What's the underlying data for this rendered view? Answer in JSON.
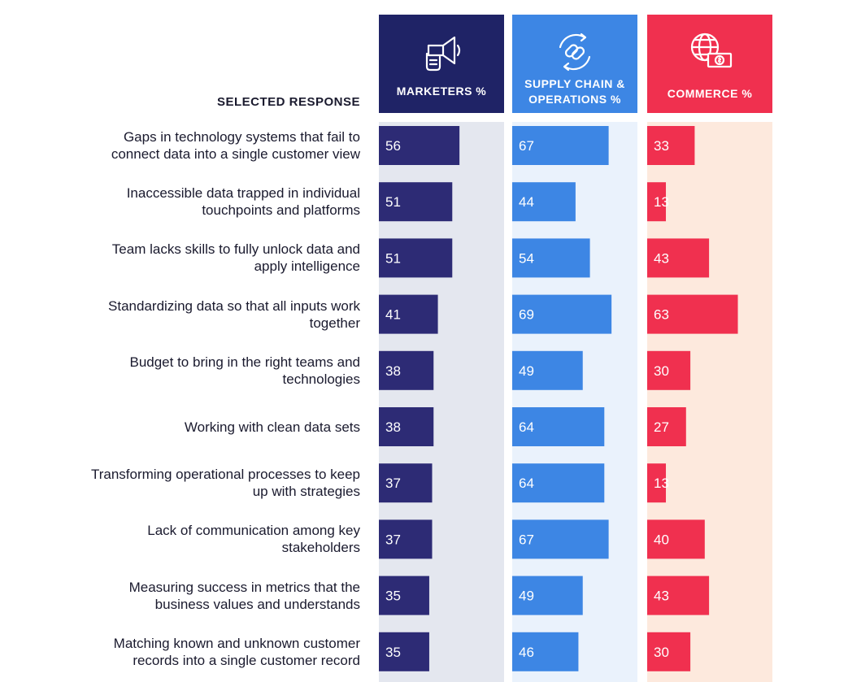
{
  "header": {
    "response_label": "SELECTED RESPONSE"
  },
  "columns": [
    {
      "key": "marketers",
      "label": "MARKETERS %",
      "icon": "megaphone-icon",
      "header_color": "#1f2366",
      "bar_color": "#2d2b75",
      "bg_color": "#e4e7ef"
    },
    {
      "key": "supply_chain",
      "label": "SUPPLY CHAIN & OPERATIONS %",
      "icon": "linked-chain-cycle-icon",
      "header_color": "#3d86e4",
      "bar_color": "#3d86e4",
      "bg_color": "#eaf2fc"
    },
    {
      "key": "commerce",
      "label": "COMMERCE %",
      "icon": "globe-money-icon",
      "header_color": "#f0304f",
      "bar_color": "#f0304f",
      "bg_color": "#fde9dd"
    }
  ],
  "chart_data": {
    "type": "bar",
    "orientation": "horizontal",
    "categories": [
      "Gaps in technology systems that fail to\nconnect data into a single customer view",
      "Inaccessible data trapped in individual\ntouchpoints and platforms",
      "Team lacks skills to fully unlock data and\napply intelligence",
      "Standardizing data so that all inputs work\ntogether",
      "Budget to bring in the right teams and\ntechnologies",
      "Working with clean data sets",
      "Transforming operational processes to keep\nup with strategies",
      "Lack of communication among key\nstakeholders",
      "Measuring success in metrics that the\nbusiness values and understands",
      "Matching known and unknown customer\nrecords into a single customer record"
    ],
    "series": [
      {
        "name": "MARKETERS %",
        "values": [
          56,
          51,
          51,
          41,
          38,
          38,
          37,
          37,
          35,
          35
        ]
      },
      {
        "name": "SUPPLY CHAIN & OPERATIONS %",
        "values": [
          67,
          44,
          54,
          69,
          49,
          64,
          64,
          67,
          49,
          46
        ]
      },
      {
        "name": "COMMERCE %",
        "values": [
          33,
          13,
          43,
          63,
          30,
          27,
          13,
          40,
          43,
          30
        ]
      }
    ],
    "xlim": [
      0,
      87
    ]
  }
}
